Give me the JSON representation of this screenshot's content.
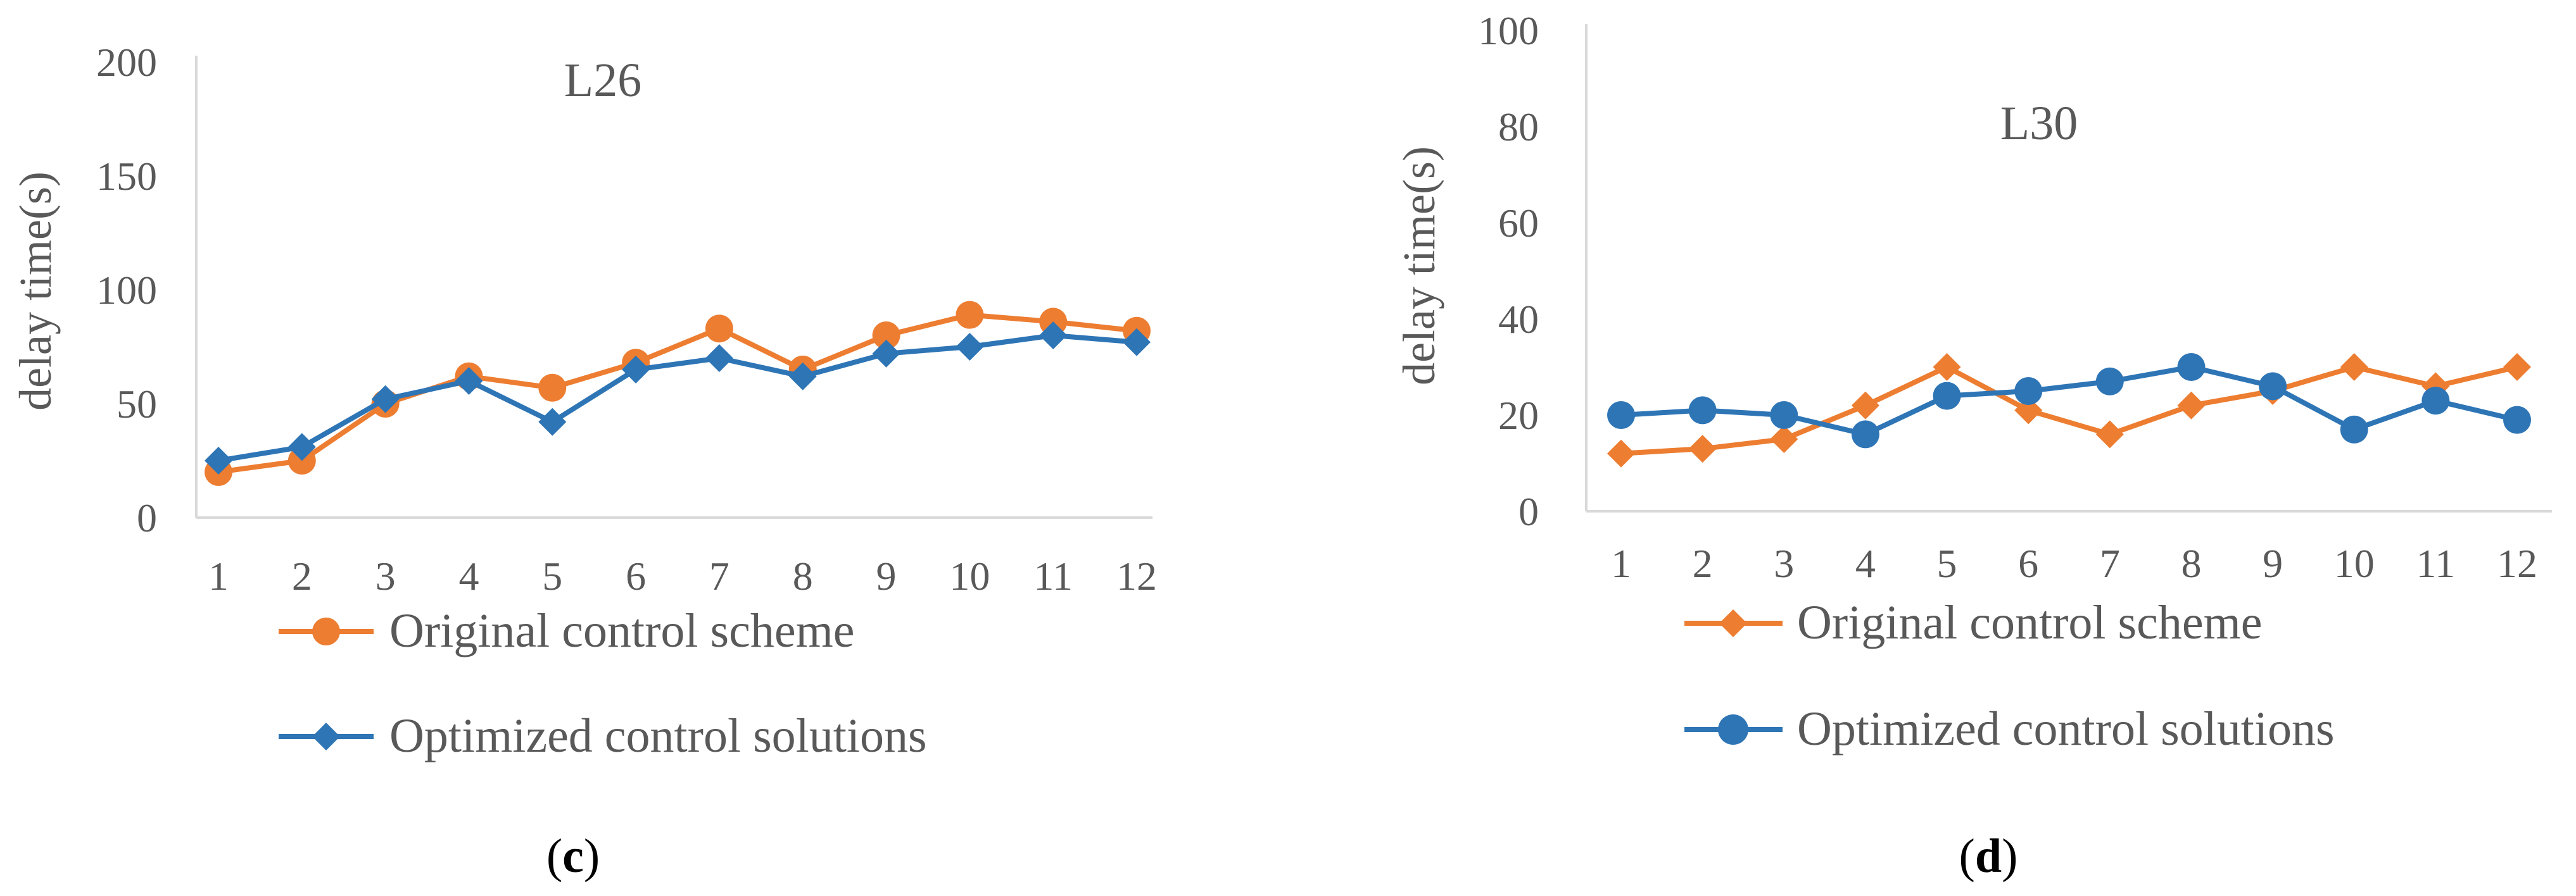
{
  "chart_data": [
    {
      "type": "line",
      "title": "L26",
      "ylabel": "delay time(s)",
      "xlabel": "",
      "ylim": [
        0,
        200
      ],
      "yticks": [
        0,
        50,
        100,
        150,
        200
      ],
      "categories": [
        "1",
        "2",
        "3",
        "4",
        "5",
        "6",
        "7",
        "8",
        "9",
        "10",
        "11",
        "12"
      ],
      "series": [
        {
          "name": "Original control scheme",
          "color": "#ed7d31",
          "marker": "circle",
          "values": [
            20,
            25,
            50,
            62,
            57,
            68,
            83,
            65,
            80,
            89,
            86,
            82
          ]
        },
        {
          "name": "Optimized control solutions",
          "color": "#2e75b6",
          "marker": "diamond",
          "values": [
            25,
            31,
            52,
            60,
            42,
            65,
            70,
            62,
            72,
            75,
            80,
            77
          ]
        }
      ],
      "caption": {
        "open": "(",
        "letter": "c",
        "close": ")"
      }
    },
    {
      "type": "line",
      "title": "L30",
      "ylabel": "delay time(s)",
      "xlabel": "",
      "ylim": [
        0,
        100
      ],
      "yticks": [
        0,
        20,
        40,
        60,
        80,
        100
      ],
      "categories": [
        "1",
        "2",
        "3",
        "4",
        "5",
        "6",
        "7",
        "8",
        "9",
        "10",
        "11",
        "12"
      ],
      "series": [
        {
          "name": "Original control scheme",
          "color": "#ed7d31",
          "marker": "diamond",
          "values": [
            12,
            13,
            15,
            22,
            30,
            21,
            16,
            22,
            25,
            30,
            26,
            30
          ]
        },
        {
          "name": "Optimized control solutions",
          "color": "#2e75b6",
          "marker": "circle",
          "values": [
            20,
            21,
            20,
            16,
            24,
            25,
            27,
            30,
            26,
            17,
            23,
            19
          ]
        }
      ],
      "caption": {
        "open": "(",
        "letter": "d",
        "close": ")"
      }
    }
  ]
}
